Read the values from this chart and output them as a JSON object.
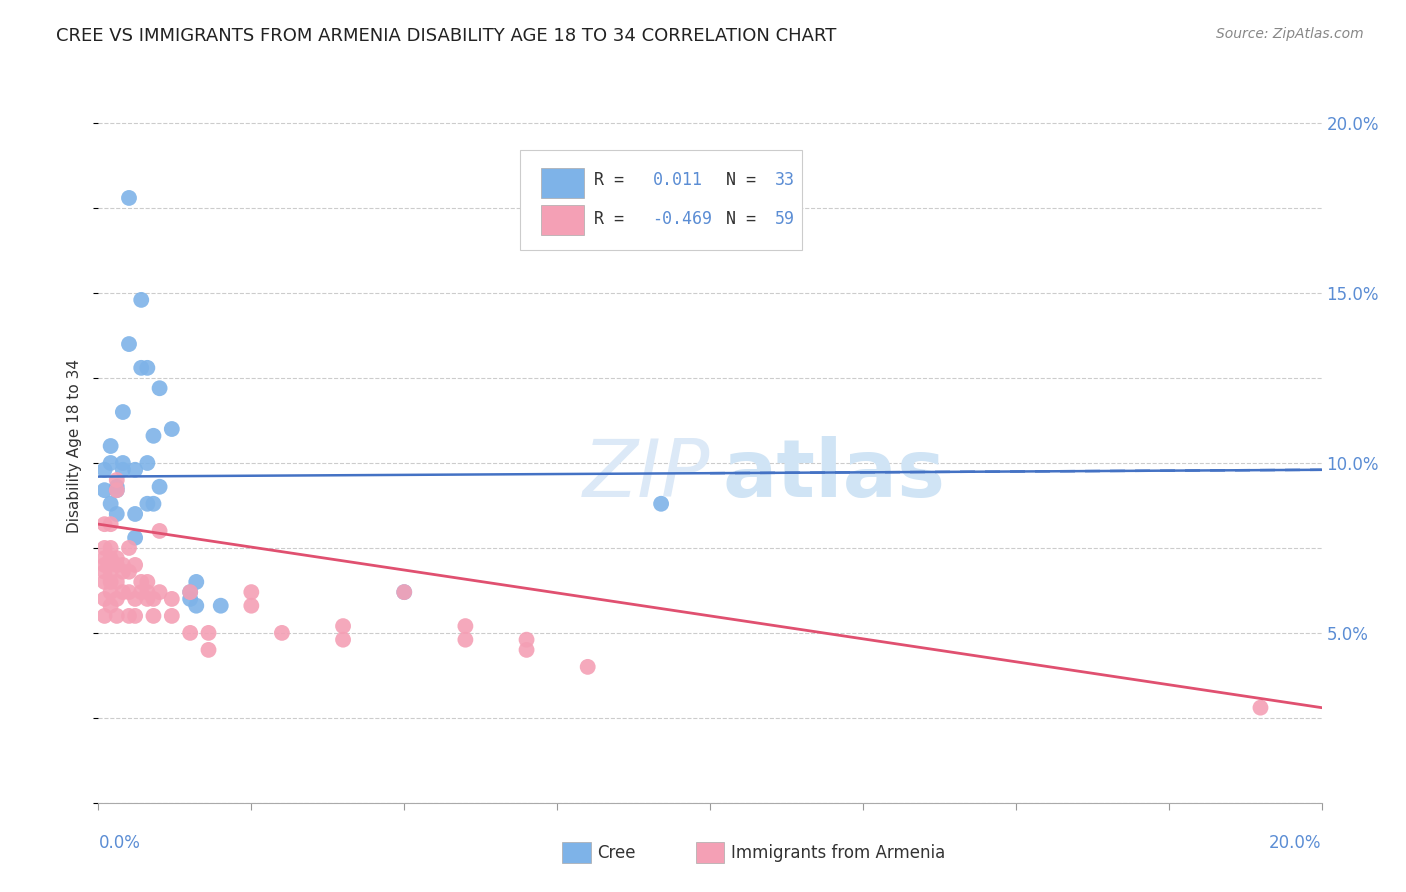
{
  "title": "CREE VS IMMIGRANTS FROM ARMENIA DISABILITY AGE 18 TO 34 CORRELATION CHART",
  "source": "Source: ZipAtlas.com",
  "ylabel": "Disability Age 18 to 34",
  "xlim": [
    0.0,
    0.2
  ],
  "ylim": [
    0.0,
    0.21
  ],
  "yticks": [
    0.05,
    0.1,
    0.15,
    0.2
  ],
  "ytick_labels": [
    "5.0%",
    "10.0%",
    "15.0%",
    "20.0%"
  ],
  "cree_color": "#7eb3e8",
  "armenia_color": "#f4a0b5",
  "trendline_cree_color": "#4472c4",
  "trendline_armenia_color": "#e05070",
  "cree_points": [
    [
      0.001,
      0.098
    ],
    [
      0.001,
      0.092
    ],
    [
      0.002,
      0.1
    ],
    [
      0.002,
      0.105
    ],
    [
      0.002,
      0.088
    ],
    [
      0.003,
      0.092
    ],
    [
      0.003,
      0.085
    ],
    [
      0.003,
      0.093
    ],
    [
      0.004,
      0.115
    ],
    [
      0.004,
      0.098
    ],
    [
      0.004,
      0.1
    ],
    [
      0.005,
      0.178
    ],
    [
      0.005,
      0.135
    ],
    [
      0.006,
      0.085
    ],
    [
      0.006,
      0.078
    ],
    [
      0.006,
      0.098
    ],
    [
      0.007,
      0.148
    ],
    [
      0.007,
      0.128
    ],
    [
      0.008,
      0.088
    ],
    [
      0.008,
      0.128
    ],
    [
      0.008,
      0.1
    ],
    [
      0.009,
      0.088
    ],
    [
      0.009,
      0.108
    ],
    [
      0.01,
      0.093
    ],
    [
      0.01,
      0.122
    ],
    [
      0.012,
      0.11
    ],
    [
      0.015,
      0.062
    ],
    [
      0.015,
      0.06
    ],
    [
      0.016,
      0.065
    ],
    [
      0.016,
      0.058
    ],
    [
      0.02,
      0.058
    ],
    [
      0.05,
      0.062
    ],
    [
      0.092,
      0.088
    ]
  ],
  "armenia_points": [
    [
      0.001,
      0.072
    ],
    [
      0.001,
      0.068
    ],
    [
      0.001,
      0.082
    ],
    [
      0.001,
      0.075
    ],
    [
      0.001,
      0.06
    ],
    [
      0.001,
      0.055
    ],
    [
      0.001,
      0.065
    ],
    [
      0.001,
      0.07
    ],
    [
      0.002,
      0.072
    ],
    [
      0.002,
      0.068
    ],
    [
      0.002,
      0.082
    ],
    [
      0.002,
      0.075
    ],
    [
      0.002,
      0.062
    ],
    [
      0.002,
      0.058
    ],
    [
      0.002,
      0.065
    ],
    [
      0.003,
      0.07
    ],
    [
      0.003,
      0.065
    ],
    [
      0.003,
      0.06
    ],
    [
      0.003,
      0.072
    ],
    [
      0.003,
      0.055
    ],
    [
      0.003,
      0.092
    ],
    [
      0.003,
      0.095
    ],
    [
      0.004,
      0.068
    ],
    [
      0.004,
      0.07
    ],
    [
      0.004,
      0.062
    ],
    [
      0.005,
      0.075
    ],
    [
      0.005,
      0.062
    ],
    [
      0.005,
      0.055
    ],
    [
      0.005,
      0.068
    ],
    [
      0.006,
      0.055
    ],
    [
      0.006,
      0.07
    ],
    [
      0.006,
      0.06
    ],
    [
      0.007,
      0.065
    ],
    [
      0.007,
      0.062
    ],
    [
      0.008,
      0.065
    ],
    [
      0.008,
      0.06
    ],
    [
      0.008,
      0.062
    ],
    [
      0.009,
      0.06
    ],
    [
      0.009,
      0.055
    ],
    [
      0.01,
      0.062
    ],
    [
      0.01,
      0.08
    ],
    [
      0.012,
      0.06
    ],
    [
      0.012,
      0.055
    ],
    [
      0.015,
      0.05
    ],
    [
      0.015,
      0.062
    ],
    [
      0.018,
      0.045
    ],
    [
      0.018,
      0.05
    ],
    [
      0.025,
      0.058
    ],
    [
      0.025,
      0.062
    ],
    [
      0.03,
      0.05
    ],
    [
      0.04,
      0.048
    ],
    [
      0.04,
      0.052
    ],
    [
      0.05,
      0.062
    ],
    [
      0.06,
      0.048
    ],
    [
      0.06,
      0.052
    ],
    [
      0.07,
      0.045
    ],
    [
      0.07,
      0.048
    ],
    [
      0.08,
      0.04
    ],
    [
      0.19,
      0.028
    ]
  ],
  "cree_trendline": [
    [
      0.0,
      0.096
    ],
    [
      0.2,
      0.098
    ]
  ],
  "armenia_trendline": [
    [
      0.0,
      0.082
    ],
    [
      0.2,
      0.028
    ]
  ]
}
